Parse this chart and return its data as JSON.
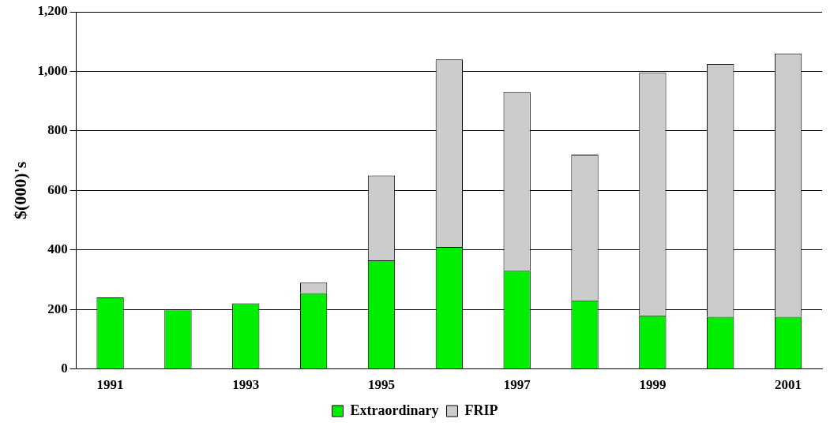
{
  "chart_data": {
    "type": "bar",
    "stacked": true,
    "ylabel": "$(000)'s",
    "categories": [
      "1991",
      null,
      "1993",
      null,
      "1995",
      null,
      "1997",
      null,
      "1999",
      null,
      "2001"
    ],
    "series": [
      {
        "name": "Extraordinary",
        "color": "#00ee00",
        "values": [
          240,
          200,
          220,
          255,
          365,
          410,
          330,
          230,
          180,
          175,
          175
        ]
      },
      {
        "name": "FRIP",
        "color": "#cccccc",
        "values": [
          null,
          null,
          null,
          35,
          285,
          630,
          600,
          490,
          815,
          850,
          885
        ]
      }
    ],
    "ylim": [
      0,
      1200
    ],
    "yticks": [
      0,
      {
        "value": 200,
        "label": "200"
      },
      {
        "value": 400,
        "label": "400"
      },
      {
        "value": 600,
        "label": "600"
      },
      {
        "value": 800,
        "label": "800"
      },
      {
        "value": 1000,
        "label": "1,000"
      },
      {
        "value": 1200,
        "label": "1,200"
      }
    ],
    "grid": "y",
    "legend": "bottom"
  }
}
